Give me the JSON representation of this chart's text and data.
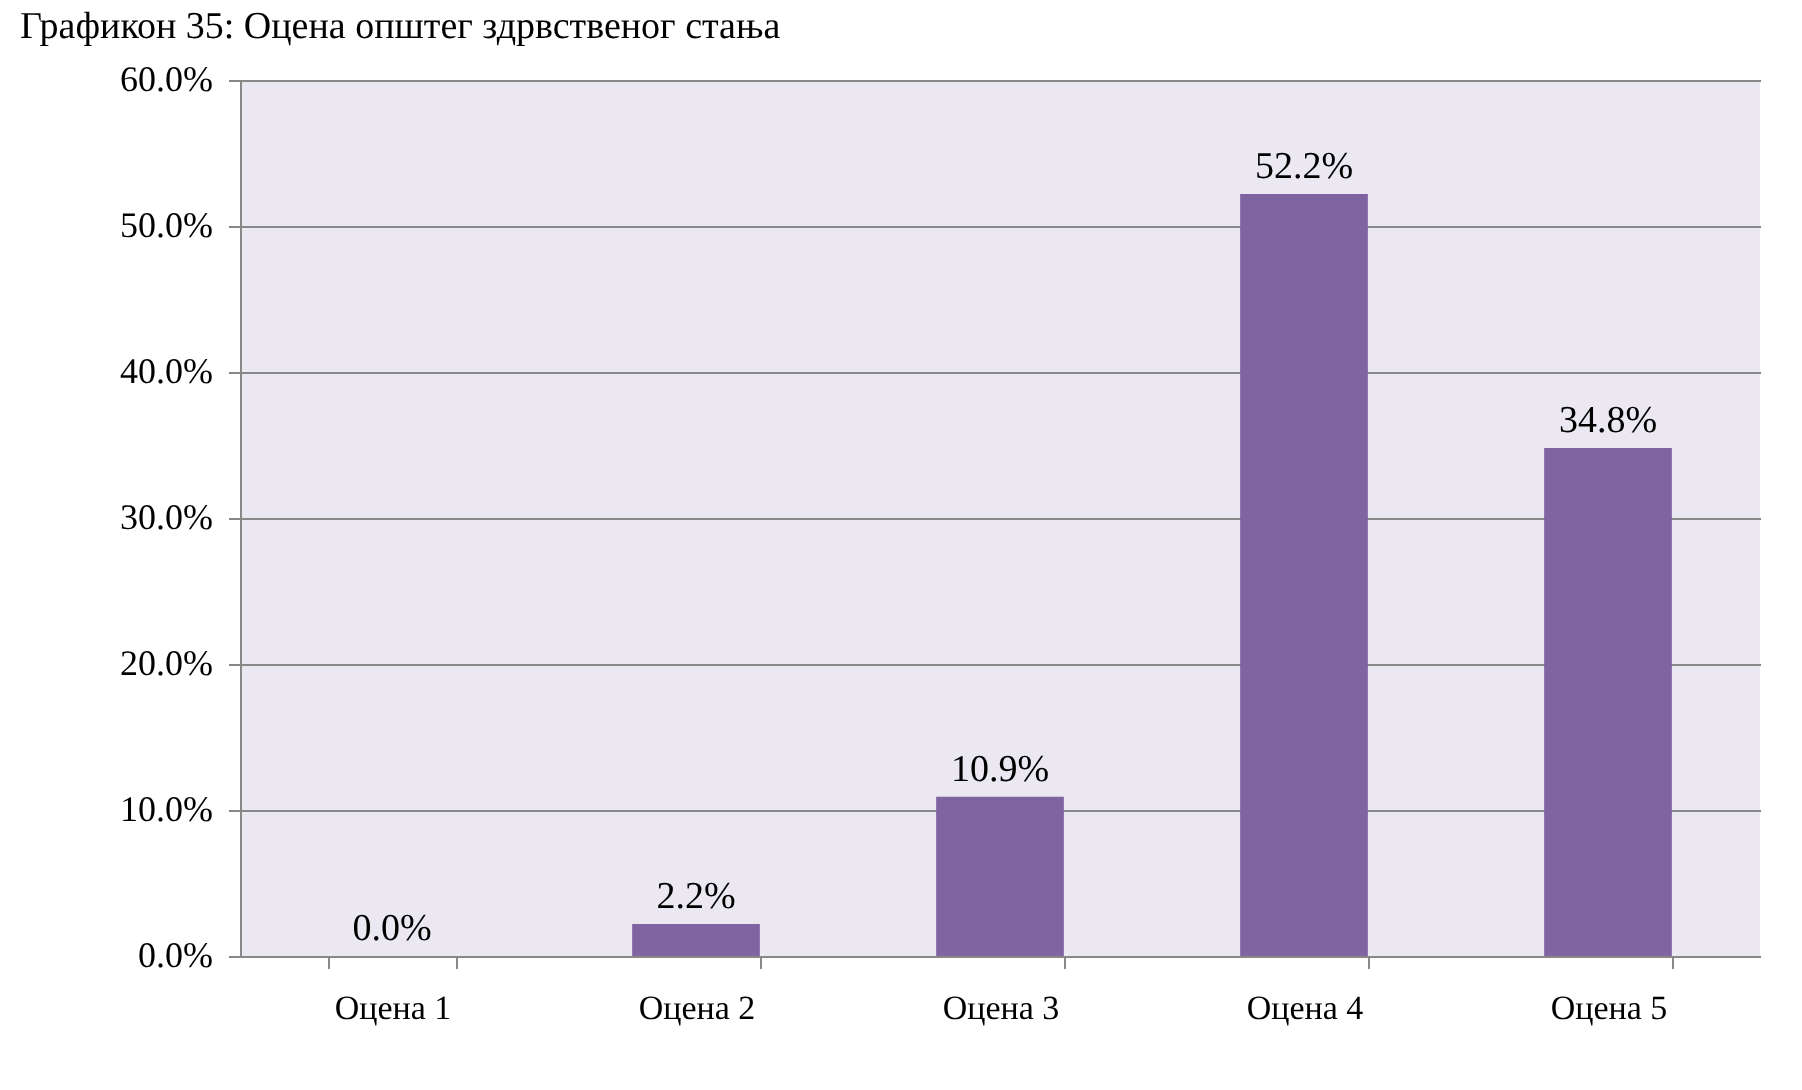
{
  "chart_data": {
    "type": "bar",
    "title": "Графикон 35: Оцена општег здрвственог стања",
    "categories": [
      "Оцена 1",
      "Оцена 2",
      "Оцена 3",
      "Оцена 4",
      "Оцена 5"
    ],
    "values": [
      0.0,
      2.2,
      10.9,
      52.2,
      34.8
    ],
    "value_labels": [
      "0.0%",
      "2.2%",
      "10.9%",
      "52.2%",
      "34.8%"
    ],
    "color": "#8064a2",
    "ylim": [
      0,
      60
    ],
    "yticks": [
      {
        "value": 0,
        "label": "0.0%"
      },
      {
        "value": 10,
        "label": "10.0%"
      },
      {
        "value": 20,
        "label": "20.0%"
      },
      {
        "value": 30,
        "label": "30.0%"
      },
      {
        "value": 40,
        "label": "40.0%"
      },
      {
        "value": 50,
        "label": "50.0%"
      },
      {
        "value": 60,
        "label": "60.0%"
      }
    ],
    "grid": "y"
  }
}
